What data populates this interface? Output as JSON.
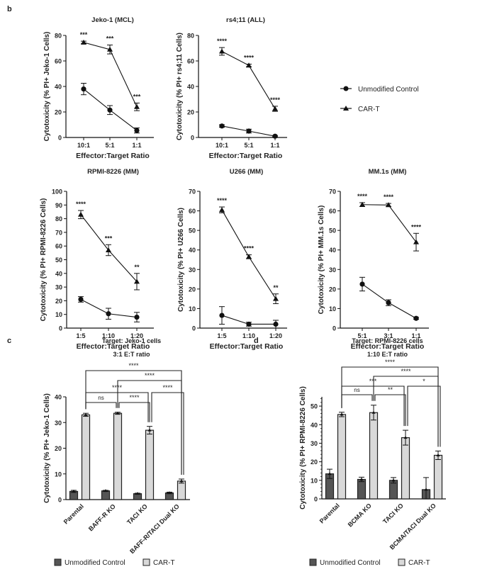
{
  "panel_labels": {
    "b": "b",
    "c": "c",
    "d": "d"
  },
  "legend_b": {
    "control": "Unmodified Control",
    "cart": "CAR-T"
  },
  "colors": {
    "control_bar": "#555555",
    "cart_bar": "#d9d9d9",
    "line": "#111111"
  },
  "chart_data": [
    {
      "type": "line",
      "title": "Jeko-1 (MCL)",
      "xlabel": "Effector:Target Ratio",
      "ylabel": "Cytotoxicity (% PI+ Jeko-1 Cells)",
      "categories": [
        "10:1",
        "5:1",
        "1:1"
      ],
      "ylim": [
        0,
        80
      ],
      "ytick_step": 20,
      "series": [
        {
          "name": "Unmodified Control",
          "marker": "circle",
          "values": [
            38,
            21.5,
            5.5
          ],
          "errors": [
            4.5,
            3.5,
            2
          ]
        },
        {
          "name": "CAR-T",
          "marker": "triangle",
          "values": [
            74.5,
            69,
            24
          ],
          "errors": [
            1,
            3.5,
            3
          ]
        }
      ],
      "significance": [
        "***",
        "***",
        "***"
      ]
    },
    {
      "type": "line",
      "title": "rs4;11 (ALL)",
      "xlabel": "Effector:Target Ratio",
      "ylabel": "Cytotoxicity (% PI+ rs4;11 Cells)",
      "categories": [
        "10:1",
        "5:1",
        "1:1"
      ],
      "ylim": [
        0,
        80
      ],
      "ytick_step": 20,
      "series": [
        {
          "name": "Unmodified Control",
          "marker": "circle",
          "values": [
            9,
            5,
            1
          ],
          "errors": [
            1,
            1.5,
            0.5
          ]
        },
        {
          "name": "CAR-T",
          "marker": "triangle",
          "values": [
            67.5,
            56.5,
            22.5
          ],
          "errors": [
            3,
            1,
            2
          ]
        }
      ],
      "significance": [
        "****",
        "****",
        "****"
      ]
    },
    {
      "type": "line",
      "title": "RPMI-8226 (MM)",
      "xlabel": "Effector:Target Ratio",
      "ylabel": "Cytotoxicity (% PI+ RPMI-8226 Cells)",
      "categories": [
        "1:5",
        "1:10",
        "1:20"
      ],
      "ylim": [
        0,
        100
      ],
      "ytick_step": 10,
      "series": [
        {
          "name": "Unmodified Control",
          "marker": "circle",
          "values": [
            21,
            10.5,
            8
          ],
          "errors": [
            2,
            4,
            3.5
          ]
        },
        {
          "name": "CAR-T",
          "marker": "triangle",
          "values": [
            83,
            57,
            34
          ],
          "errors": [
            3,
            4,
            6
          ]
        }
      ],
      "significance": [
        "****",
        "***",
        "**"
      ]
    },
    {
      "type": "line",
      "title": "U266 (MM)",
      "xlabel": "Effector:Target Ratio",
      "ylabel": "Cytotoxicity (% PI+ U266 Cells)",
      "categories": [
        "1:5",
        "1:10",
        "1:20"
      ],
      "ylim": [
        0,
        70
      ],
      "ytick_step": 10,
      "series": [
        {
          "name": "Unmodified Control",
          "marker": "circle",
          "values": [
            6.5,
            2,
            2
          ],
          "errors": [
            4.5,
            1,
            2
          ]
        },
        {
          "name": "CAR-T",
          "marker": "triangle",
          "values": [
            60.5,
            36.5,
            15
          ],
          "errors": [
            1.5,
            1,
            2.5
          ]
        }
      ],
      "significance": [
        "****",
        "****",
        "**"
      ]
    },
    {
      "type": "line",
      "title": "MM.1s (MM)",
      "xlabel": "Effector:Target Ratio",
      "ylabel": "Cytotoxicity (% PI+ MM.1s Cells)",
      "categories": [
        "5:1",
        "3:1",
        "1:1"
      ],
      "ylim": [
        0,
        70
      ],
      "ytick_step": 10,
      "series": [
        {
          "name": "Unmodified Control",
          "marker": "circle",
          "values": [
            22.5,
            13,
            5
          ],
          "errors": [
            3.5,
            1.5,
            0.5
          ]
        },
        {
          "name": "CAR-T",
          "marker": "triangle",
          "values": [
            63.2,
            63,
            44
          ],
          "errors": [
            1,
            0.8,
            4.5
          ]
        }
      ],
      "significance": [
        "****",
        "****",
        "****"
      ]
    },
    {
      "type": "bar",
      "title": "Target: Jeko-1 cells",
      "subtitle": "3:1 E:T ratio",
      "ylabel": "Cytotoxicity (% PI+ Jeko-1 Cells)",
      "categories": [
        "Parental",
        "BAFF-R KO",
        "TACI KO",
        "BAFF-R/TACI Dual KO"
      ],
      "ylim": [
        0,
        40
      ],
      "ytick_step": 10,
      "series": [
        {
          "name": "Unmodified Control",
          "values": [
            3.2,
            3.4,
            2.3,
            2.6
          ],
          "errors": [
            0.4,
            0.2,
            0.2,
            0.3
          ]
        },
        {
          "name": "CAR-T",
          "values": [
            33,
            33.6,
            27,
            7.2
          ],
          "errors": [
            0.6,
            0.4,
            1.5,
            0.8
          ]
        }
      ],
      "comparisons": [
        {
          "from": 0,
          "to": 3,
          "label": "****"
        },
        {
          "from": 1,
          "to": 3,
          "label": "****"
        },
        {
          "from": 0,
          "to": 2,
          "label": "****"
        },
        {
          "from": 2,
          "to": 3,
          "label": "****"
        },
        {
          "from": 0,
          "to": 1,
          "label": "ns"
        },
        {
          "from": 1,
          "to": 2,
          "label": "****"
        }
      ],
      "legend": [
        "Unmodified Control",
        "CAR-T"
      ]
    },
    {
      "type": "bar",
      "title": "Target: RPMI-8226 cells",
      "subtitle": "1:10 E:T ratio",
      "ylabel": "Cytotoxicity (% PI+ RPMI-8226 Cells)",
      "categories": [
        "Parental",
        "BCMA KO",
        "TACI KO",
        "BCMA/TACI Dual KO"
      ],
      "ylim": [
        0,
        55
      ],
      "ytick_step": 10,
      "series": [
        {
          "name": "Unmodified Control",
          "values": [
            13.5,
            10.5,
            10,
            5
          ],
          "errors": [
            2.5,
            1.2,
            1.5,
            6.5
          ]
        },
        {
          "name": "CAR-T",
          "values": [
            45.5,
            46.5,
            33,
            23.5
          ],
          "errors": [
            1.2,
            4,
            4,
            2.3
          ]
        }
      ],
      "comparisons": [
        {
          "from": 0,
          "to": 3,
          "label": "****"
        },
        {
          "from": 1,
          "to": 3,
          "label": "****"
        },
        {
          "from": 0,
          "to": 2,
          "label": "***"
        },
        {
          "from": 2,
          "to": 3,
          "label": "*"
        },
        {
          "from": 0,
          "to": 1,
          "label": "ns"
        },
        {
          "from": 1,
          "to": 2,
          "label": "**"
        }
      ],
      "legend": [
        "Unmodified Control",
        "CAR-T"
      ]
    }
  ]
}
